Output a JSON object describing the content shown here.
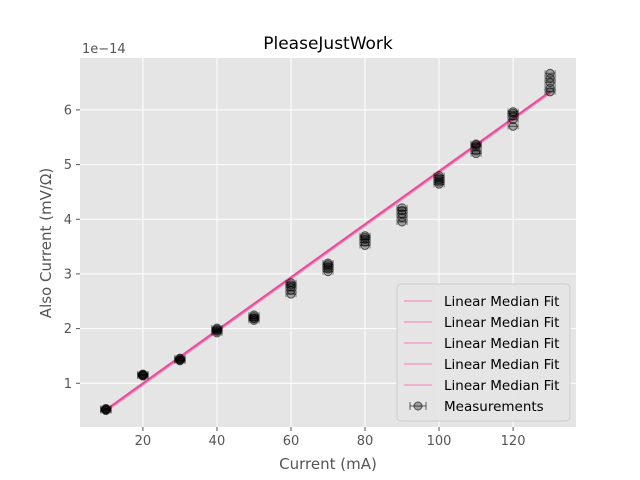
{
  "chart_data": {
    "type": "scatter",
    "title": "PleaseJustWork",
    "xlabel": "Current (mA)",
    "ylabel": "Also Current (mV/Ω)",
    "y_offset_label": "1e−14",
    "xlim": [
      3,
      137
    ],
    "ylim": [
      0.2,
      6.95
    ],
    "x_ticks": [
      20,
      40,
      60,
      80,
      100,
      120
    ],
    "y_ticks": [
      1,
      2,
      3,
      4,
      5,
      6
    ],
    "grid": true,
    "legend_position": "lower-right",
    "series": [
      {
        "name": "Measurements",
        "style": "scatter-errorbar",
        "color": "#000000",
        "x": [
          10,
          20,
          30,
          40,
          50,
          60,
          70,
          80,
          90,
          100,
          110,
          120,
          130
        ],
        "y_groups": [
          [
            0.5,
            0.52,
            0.53,
            0.51,
            0.54
          ],
          [
            1.13,
            1.15,
            1.17,
            1.14,
            1.16
          ],
          [
            1.41,
            1.43,
            1.45,
            1.42,
            1.46
          ],
          [
            1.92,
            1.95,
            1.99,
            1.97,
            2.01
          ],
          [
            2.15,
            2.19,
            2.22,
            2.25,
            2.18
          ],
          [
            2.63,
            2.7,
            2.76,
            2.8,
            2.84
          ],
          [
            3.04,
            3.09,
            3.13,
            3.17,
            3.2
          ],
          [
            3.52,
            3.58,
            3.63,
            3.67,
            3.7
          ],
          [
            3.95,
            4.03,
            4.1,
            4.16,
            4.21
          ],
          [
            4.64,
            4.68,
            4.72,
            4.76,
            4.8
          ],
          [
            5.2,
            5.25,
            5.33,
            5.38,
            5.36
          ],
          [
            5.7,
            5.82,
            5.89,
            5.94,
            5.97
          ],
          [
            6.33,
            6.4,
            6.5,
            6.58,
            6.67
          ]
        ]
      },
      {
        "name": "Linear Median Fit",
        "style": "line",
        "color": "#f7a6c9",
        "x": [
          10,
          130
        ],
        "y": [
          0.48,
          6.3
        ]
      },
      {
        "name": "Linear Median Fit",
        "style": "line",
        "color": "#f28cba",
        "x": [
          10,
          130
        ],
        "y": [
          0.49,
          6.31
        ]
      },
      {
        "name": "Linear Median Fit",
        "style": "line",
        "color": "#ee6fab",
        "x": [
          10,
          130
        ],
        "y": [
          0.5,
          6.32
        ]
      },
      {
        "name": "Linear Median Fit",
        "style": "line",
        "color": "#eb5aa0",
        "x": [
          10,
          130
        ],
        "y": [
          0.51,
          6.33
        ]
      },
      {
        "name": "Linear Median Fit",
        "style": "line",
        "color": "#e84598",
        "x": [
          10,
          130
        ],
        "y": [
          0.52,
          6.34
        ]
      }
    ],
    "legend_entries": [
      "Linear Median Fit",
      "Linear Median Fit",
      "Linear Median Fit",
      "Linear Median Fit",
      "Linear Median Fit",
      "Measurements"
    ],
    "colors": {
      "plot_background": "#e5e5e5",
      "grid": "#ffffff",
      "fit_legend": "#f2a0c6",
      "marker": "#000000"
    }
  }
}
